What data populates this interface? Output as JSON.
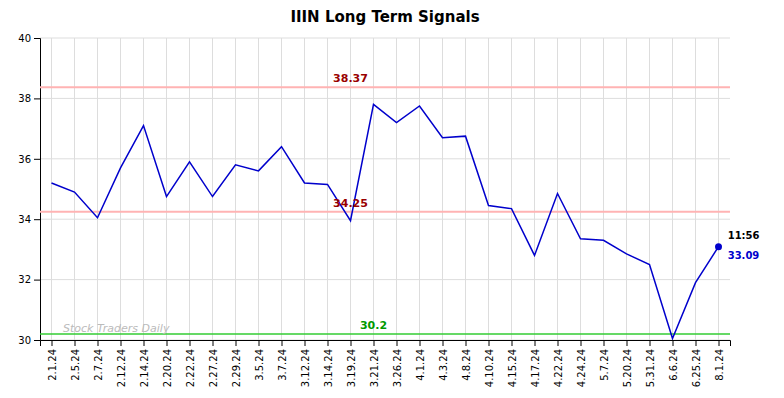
{
  "chart_data": {
    "type": "line",
    "title": "IIIN Long Term Signals",
    "categories": [
      "2.1.24",
      "2.5.24",
      "2.7.24",
      "2.12.24",
      "2.14.24",
      "2.20.24",
      "2.22.24",
      "2.27.24",
      "2.29.24",
      "3.5.24",
      "3.7.24",
      "3.12.24",
      "3.14.24",
      "3.19.24",
      "3.21.24",
      "3.26.24",
      "4.1.24",
      "4.3.24",
      "4.8.24",
      "4.10.24",
      "4.15.24",
      "4.17.24",
      "4.22.24",
      "4.24.24",
      "5.7.24",
      "5.20.24",
      "5.31.24",
      "6.6.24",
      "6.25.24",
      "8.1.24"
    ],
    "values": [
      35.2,
      34.9,
      34.05,
      35.7,
      37.1,
      34.75,
      35.9,
      34.75,
      35.8,
      35.6,
      36.4,
      35.2,
      35.15,
      33.95,
      37.8,
      37.2,
      37.75,
      36.7,
      36.75,
      34.45,
      34.35,
      32.8,
      34.85,
      33.35,
      33.3,
      32.85,
      32.5,
      30.05,
      31.9,
      33.09
    ],
    "color": "#0000cc",
    "reference_lines": [
      {
        "value": 38.37,
        "color": "#ffb3b3",
        "label_color": "#990000"
      },
      {
        "value": 34.25,
        "color": "#ffb3b3",
        "label_color": "#990000"
      },
      {
        "value": 30.2,
        "color": "#33cc33",
        "label_color": "#009900"
      }
    ],
    "annotations": [
      {
        "text": "11:56",
        "color": "#000000"
      },
      {
        "text": "Stock Traders Daily",
        "color": "#bbbbbb"
      }
    ],
    "ylim": [
      30.0,
      40.0
    ],
    "yticks": [
      30,
      32,
      34,
      36,
      38,
      40
    ],
    "grid": true
  }
}
